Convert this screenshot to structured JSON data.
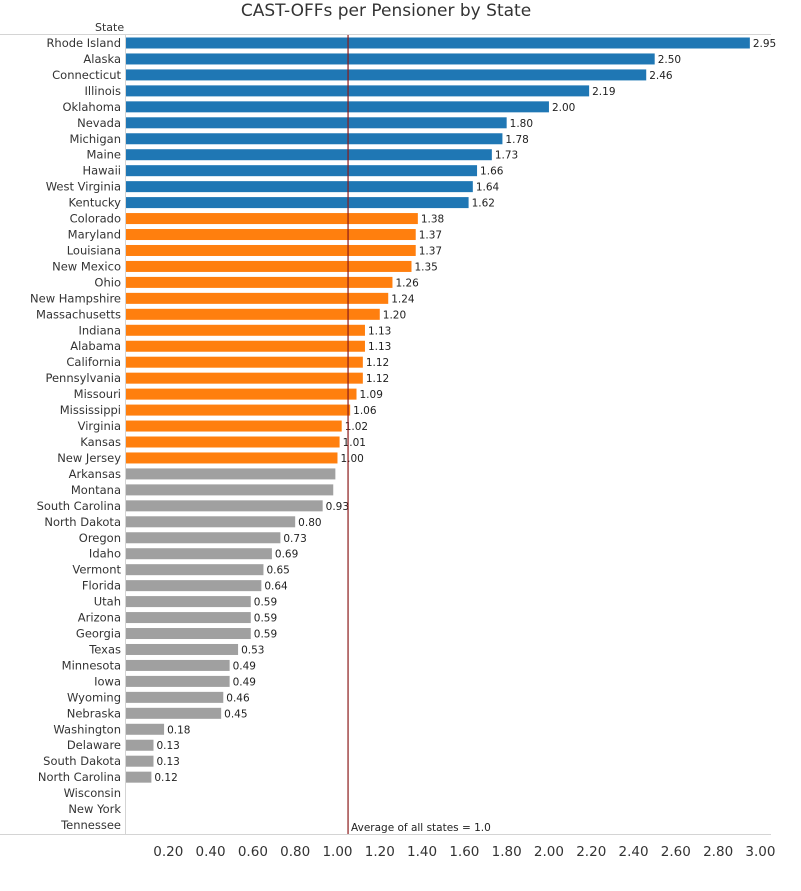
{
  "chart_data": {
    "type": "bar",
    "orientation": "horizontal",
    "title": "CAST-OFFs per Pensioner by State",
    "category_header": "State",
    "categories": [
      "Rhode Island",
      "Alaska",
      "Connecticut",
      "Illinois",
      "Oklahoma",
      "Nevada",
      "Michigan",
      "Maine",
      "Hawaii",
      "West Virginia",
      "Kentucky",
      "Colorado",
      "Maryland",
      "Louisiana",
      "New Mexico",
      "Ohio",
      "New Hampshire",
      "Massachusetts",
      "Indiana",
      "Alabama",
      "California",
      "Pennsylvania",
      "Missouri",
      "Mississippi",
      "Virginia",
      "Kansas",
      "New Jersey",
      "Arkansas",
      "Montana",
      "South Carolina",
      "North Dakota",
      "Oregon",
      "Idaho",
      "Vermont",
      "Florida",
      "Utah",
      "Arizona",
      "Georgia",
      "Texas",
      "Minnesota",
      "Iowa",
      "Wyoming",
      "Nebraska",
      "Washington",
      "Delaware",
      "South Dakota",
      "North Carolina",
      "Wisconsin",
      "New York",
      "Tennessee"
    ],
    "values": [
      2.95,
      2.5,
      2.46,
      2.19,
      2.0,
      1.8,
      1.78,
      1.73,
      1.66,
      1.64,
      1.62,
      1.38,
      1.37,
      1.37,
      1.35,
      1.26,
      1.24,
      1.2,
      1.13,
      1.13,
      1.12,
      1.12,
      1.09,
      1.06,
      1.02,
      1.01,
      1.0,
      0.99,
      0.98,
      0.93,
      0.8,
      0.73,
      0.69,
      0.65,
      0.64,
      0.59,
      0.59,
      0.59,
      0.53,
      0.49,
      0.49,
      0.46,
      0.45,
      0.18,
      0.13,
      0.13,
      0.12,
      null,
      null,
      null
    ],
    "value_labels": [
      "2.95",
      "2.50",
      "2.46",
      "2.19",
      "2.00",
      "1.80",
      "1.78",
      "1.73",
      "1.66",
      "1.64",
      "1.62",
      "1.38",
      "1.37",
      "1.37",
      "1.35",
      "1.26",
      "1.24",
      "1.20",
      "1.13",
      "1.13",
      "1.12",
      "1.12",
      "1.09",
      "1.06",
      "1.02",
      "1.01",
      "1.00",
      "",
      "",
      "0.93",
      "0.80",
      "0.73",
      "0.69",
      "0.65",
      "0.64",
      "0.59",
      "0.59",
      "0.59",
      "0.53",
      "0.49",
      "0.49",
      "0.46",
      "0.45",
      "0.18",
      "0.13",
      "0.13",
      "0.12",
      "",
      "",
      ""
    ],
    "groups": [
      "high",
      "high",
      "high",
      "high",
      "high",
      "high",
      "high",
      "high",
      "high",
      "high",
      "high",
      "mid",
      "mid",
      "mid",
      "mid",
      "mid",
      "mid",
      "mid",
      "mid",
      "mid",
      "mid",
      "mid",
      "mid",
      "mid",
      "mid",
      "mid",
      "mid",
      "low",
      "low",
      "low",
      "low",
      "low",
      "low",
      "low",
      "low",
      "low",
      "low",
      "low",
      "low",
      "low",
      "low",
      "low",
      "low",
      "low",
      "low",
      "low",
      "low",
      "low",
      "low",
      "low"
    ],
    "colors": {
      "high": "#1f77b4",
      "mid": "#ff7f0e",
      "low": "#a0a0a0",
      "reference_line": "#8b1a1a"
    },
    "xlim": [
      0,
      3.05
    ],
    "x_ticks": [
      "0.20",
      "0.40",
      "0.60",
      "0.80",
      "1.00",
      "1.20",
      "1.40",
      "1.60",
      "1.80",
      "2.00",
      "2.20",
      "2.40",
      "2.60",
      "2.80",
      "3.00"
    ],
    "reference_line": {
      "value": 1.05,
      "label": "Average of all states = 1.0"
    },
    "grid": false,
    "xlabel": "",
    "ylabel": ""
  }
}
